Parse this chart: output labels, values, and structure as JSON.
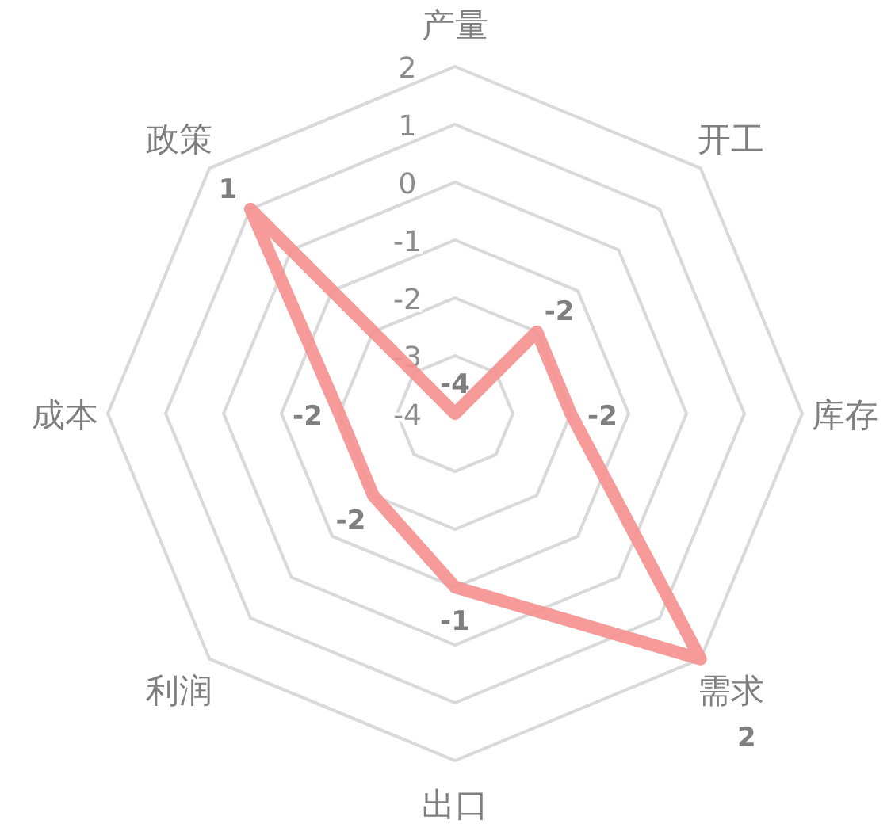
{
  "chart_data": {
    "type": "radar",
    "categories": [
      "产量",
      "开工",
      "库存",
      "需求",
      "出口",
      "利润",
      "成本",
      "政策"
    ],
    "series": [
      {
        "color": "#f58f8f",
        "values": [
          -4,
          -2,
          -2,
          2,
          -1,
          -2,
          -2,
          1
        ]
      }
    ],
    "ylim": [
      -4,
      2
    ],
    "yticks": [
      -4,
      -3,
      -2,
      -1,
      0,
      1,
      2
    ],
    "grid": true,
    "data_labels": true
  }
}
